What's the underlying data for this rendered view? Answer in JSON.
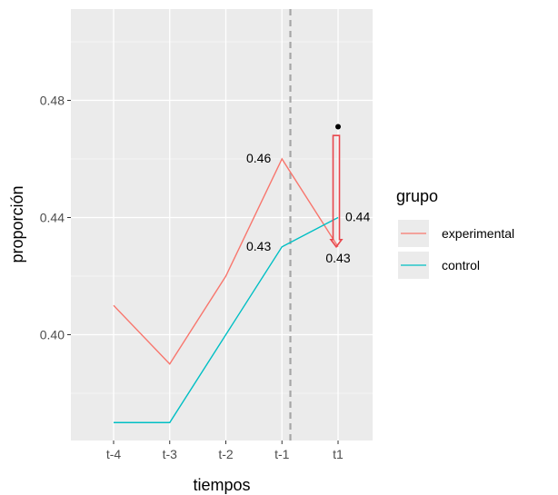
{
  "chart_data": {
    "type": "line",
    "xlabel": "tiempos",
    "ylabel": "proporción",
    "categories": [
      "t-4",
      "t-3",
      "t-2",
      "t-1",
      "t1"
    ],
    "ylim": [
      0.37,
      0.51
    ],
    "yticks": [
      0.4,
      0.44,
      0.48
    ],
    "ytick_labels": [
      "0.40",
      "0.44",
      "0.48"
    ],
    "grid": true,
    "background": "#ebebeb",
    "legend": {
      "title": "grupo",
      "placement": "right"
    },
    "series": [
      {
        "name": "experimental",
        "color": "#f8766d",
        "values": [
          0.41,
          0.39,
          0.42,
          0.46,
          0.43
        ]
      },
      {
        "name": "control",
        "color": "#00bfc4",
        "values": [
          0.37,
          0.37,
          0.4,
          0.43,
          0.44
        ]
      }
    ],
    "vline": {
      "at_category_index": 3.15,
      "style": "dashed",
      "color": "#a6a6a6"
    },
    "counterfactual_point": {
      "category_index": 4,
      "value": 0.471
    },
    "counterfactual_arrow": {
      "from": 0.468,
      "to": 0.43,
      "color": "#e8474d"
    },
    "annotations": [
      {
        "text": "0.46",
        "category_index": 3,
        "value": 0.46,
        "anchor": "end"
      },
      {
        "text": "0.43",
        "category_index": 3,
        "value": 0.43,
        "anchor": "end"
      },
      {
        "text": "0.44",
        "category_index": 4,
        "value": 0.44,
        "anchor": "start"
      },
      {
        "text": "0.43",
        "category_index": 4,
        "value": 0.43,
        "anchor": "middle"
      }
    ]
  }
}
